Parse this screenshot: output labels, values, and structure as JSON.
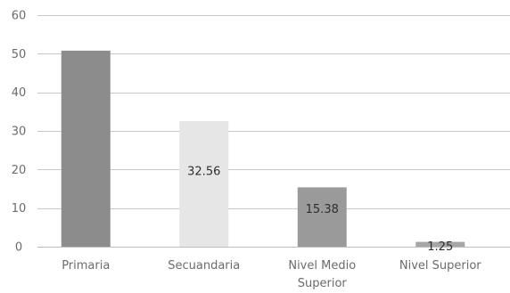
{
  "chart_data": {
    "type": "bar",
    "title": "",
    "xlabel": "",
    "ylabel": "",
    "ylim": [
      0,
      60
    ],
    "yticks": [
      0,
      10,
      20,
      30,
      40,
      50,
      60
    ],
    "grid": true,
    "legend": "none",
    "categories": [
      [
        "Primaria"
      ],
      [
        "Secuandaria"
      ],
      [
        "Nivel Medio",
        "Superior"
      ],
      [
        "Nivel Superior"
      ]
    ],
    "values": [
      50.8,
      32.56,
      15.38,
      1.25
    ],
    "data_labels": [
      "",
      "32.56",
      "15.38",
      "1.25"
    ],
    "colors": [
      "#8c8c8c",
      "#e6e6e6",
      "#9a9a9a",
      "#a6a6a6"
    ]
  }
}
